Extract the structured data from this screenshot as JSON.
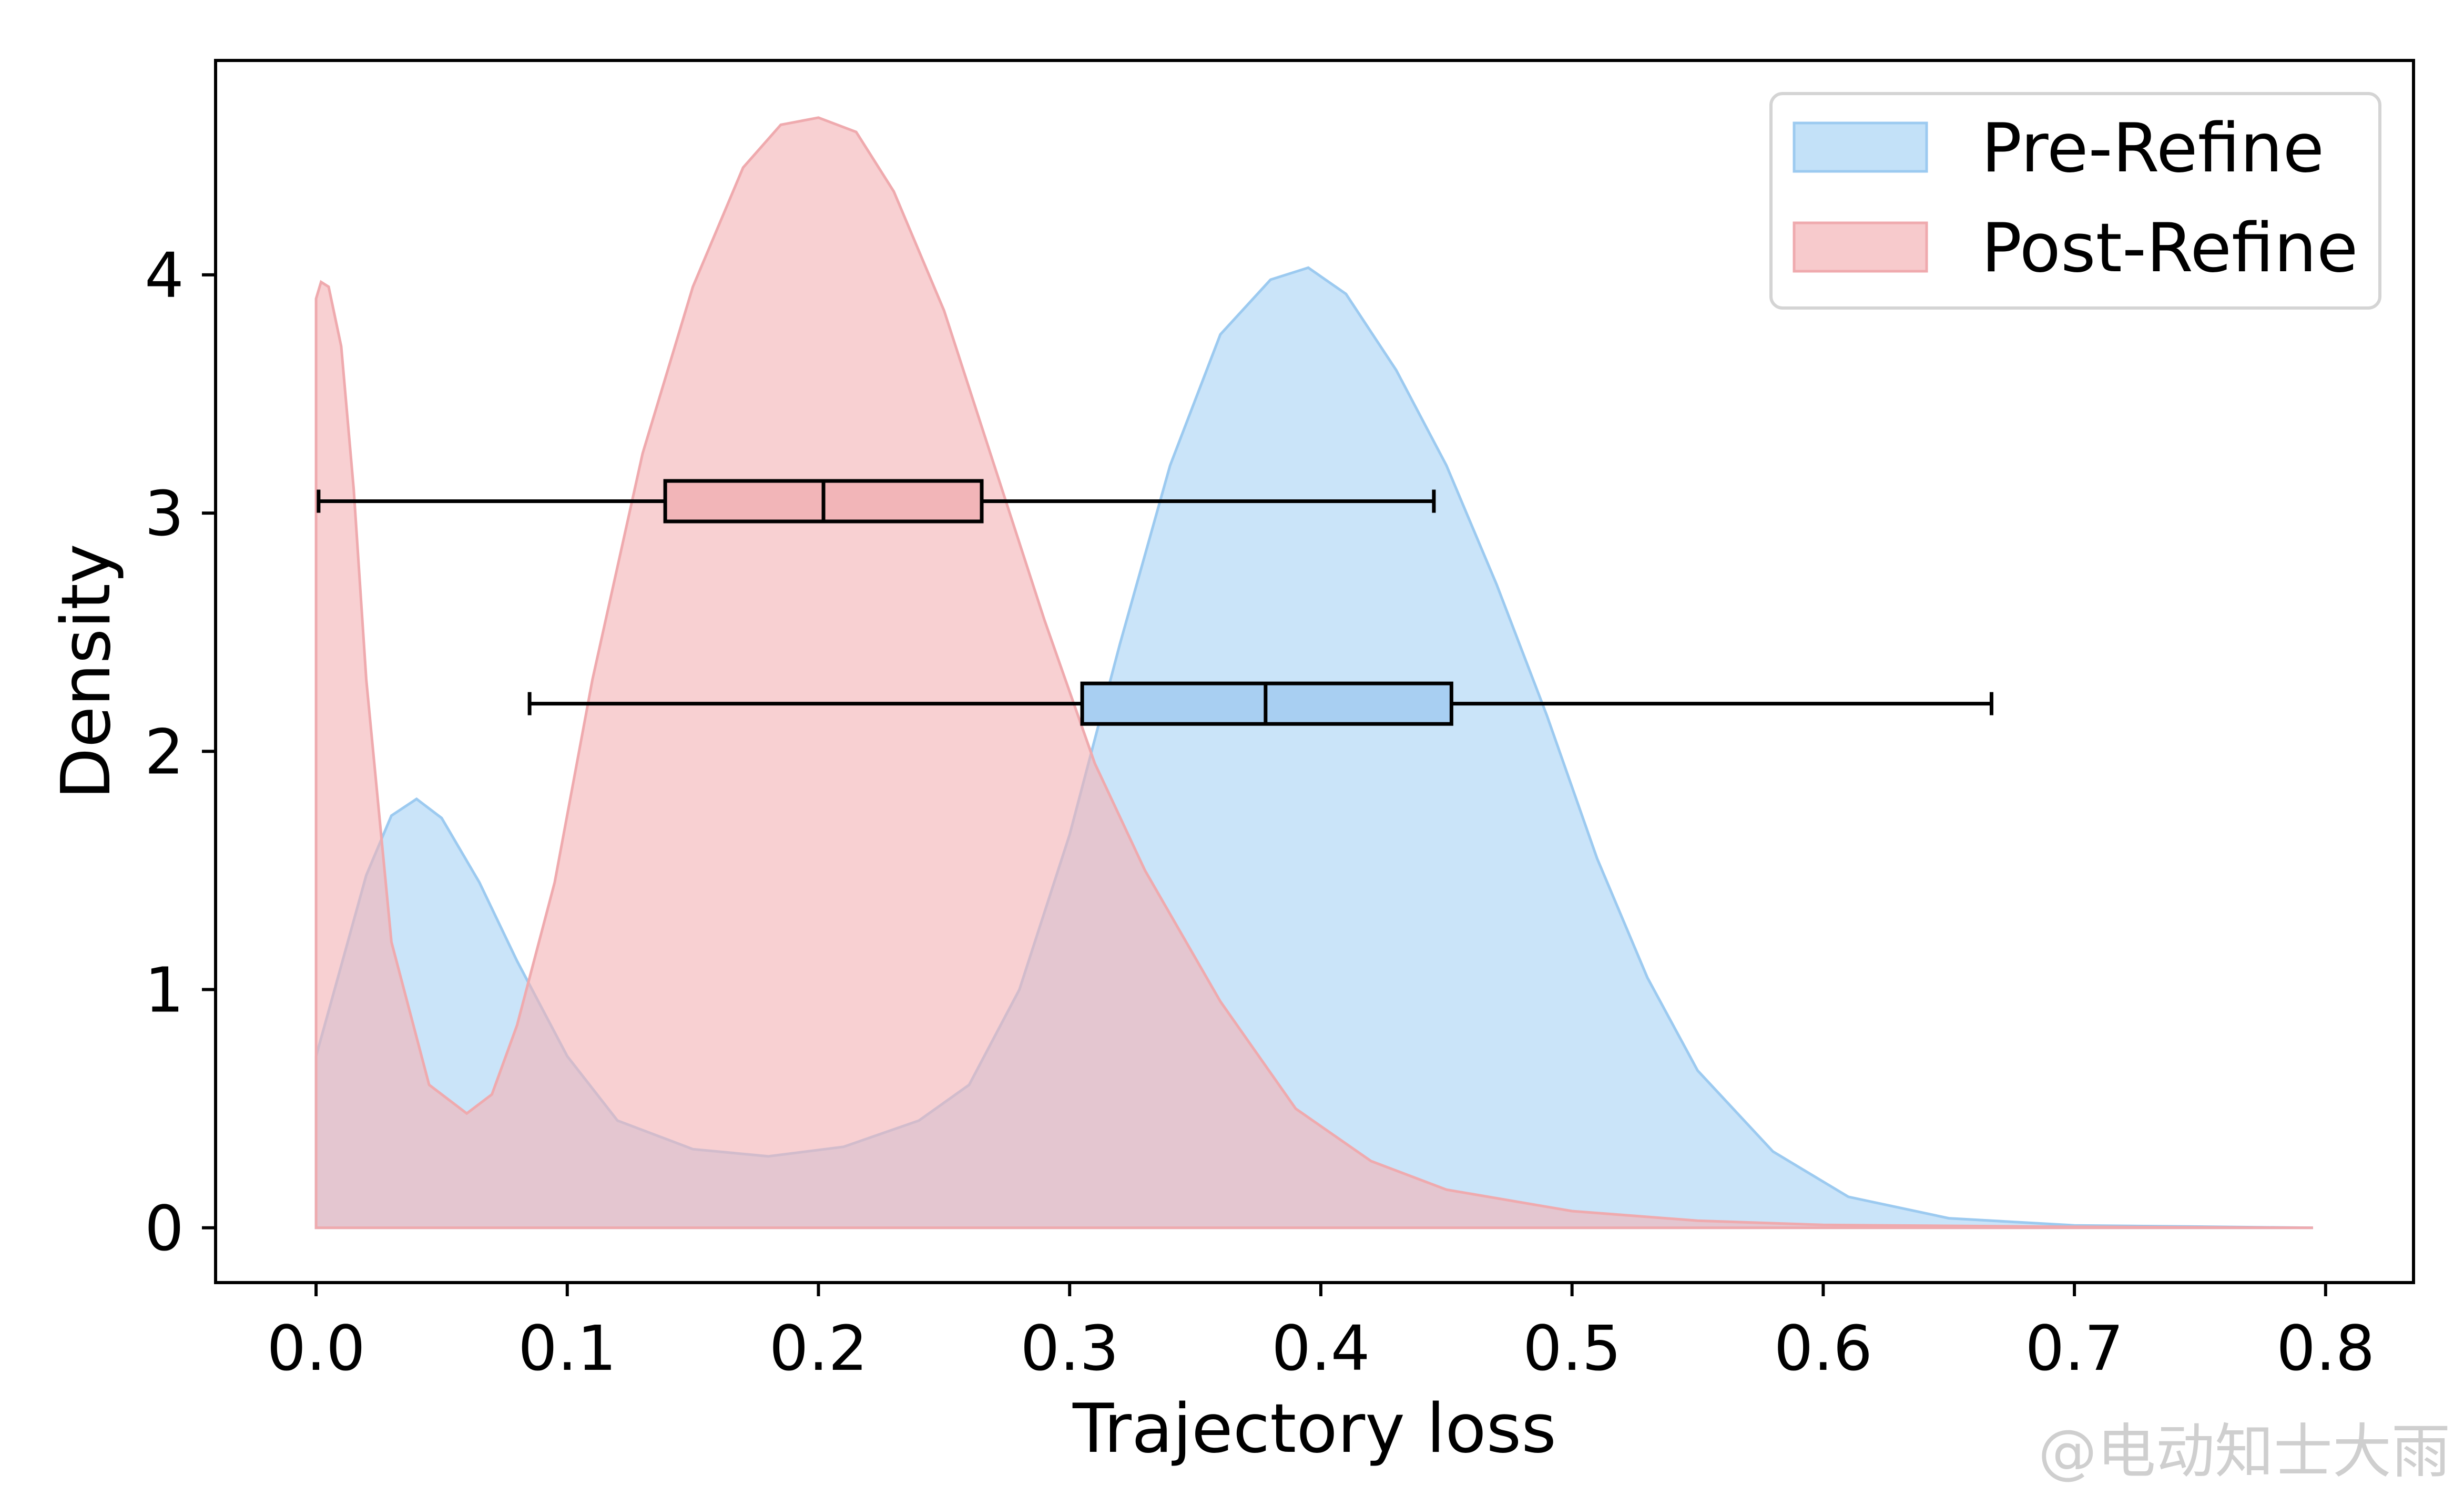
{
  "chart_data": {
    "type": "area",
    "title": "",
    "xlabel": "Trajectory loss",
    "ylabel": "Density",
    "xlim": [
      -0.04,
      0.835
    ],
    "ylim": [
      -0.23,
      4.9
    ],
    "xticks": [
      0.0,
      0.1,
      0.2,
      0.3,
      0.4,
      0.5,
      0.6,
      0.7,
      0.8
    ],
    "xtick_labels": [
      "0.0",
      "0.1",
      "0.2",
      "0.3",
      "0.4",
      "0.5",
      "0.6",
      "0.7",
      "0.8"
    ],
    "yticks": [
      0,
      1,
      2,
      3,
      4
    ],
    "ytick_labels": [
      "0",
      "1",
      "2",
      "3",
      "4"
    ],
    "grid": false,
    "legend_position": "top-right",
    "series": [
      {
        "name": "Pre-Refine",
        "color": "#aad4f5",
        "edge_color": "#9ccaf0",
        "box_color": "#a8cff2",
        "x": [
          0.0,
          0.01,
          0.02,
          0.03,
          0.04,
          0.05,
          0.065,
          0.08,
          0.1,
          0.12,
          0.15,
          0.18,
          0.21,
          0.24,
          0.26,
          0.28,
          0.3,
          0.32,
          0.34,
          0.36,
          0.38,
          0.395,
          0.41,
          0.43,
          0.45,
          0.47,
          0.49,
          0.51,
          0.53,
          0.55,
          0.58,
          0.61,
          0.65,
          0.7,
          0.75,
          0.795
        ],
        "values": [
          0.72,
          1.1,
          1.48,
          1.73,
          1.8,
          1.72,
          1.45,
          1.12,
          0.72,
          0.45,
          0.33,
          0.3,
          0.34,
          0.45,
          0.6,
          1.0,
          1.65,
          2.45,
          3.2,
          3.75,
          3.98,
          4.03,
          3.92,
          3.6,
          3.2,
          2.7,
          2.15,
          1.55,
          1.05,
          0.66,
          0.32,
          0.13,
          0.04,
          0.01,
          0.005,
          0.0
        ],
        "box": {
          "whislo": 0.085,
          "q1": 0.305,
          "median": 0.378,
          "q3": 0.452,
          "whishi": 0.667,
          "y": 2.2,
          "height": 0.17
        }
      },
      {
        "name": "Post-Refine",
        "color": "#f4b3b6",
        "edge_color": "#efaaae",
        "box_color": "#f2b5b8",
        "x": [
          0.0,
          0.002,
          0.005,
          0.01,
          0.015,
          0.02,
          0.03,
          0.045,
          0.06,
          0.07,
          0.08,
          0.095,
          0.11,
          0.13,
          0.15,
          0.17,
          0.185,
          0.2,
          0.215,
          0.23,
          0.25,
          0.27,
          0.29,
          0.31,
          0.33,
          0.36,
          0.39,
          0.42,
          0.45,
          0.5,
          0.55,
          0.6,
          0.7,
          0.795
        ],
        "values": [
          3.9,
          3.97,
          3.95,
          3.7,
          3.1,
          2.3,
          1.2,
          0.6,
          0.48,
          0.56,
          0.85,
          1.45,
          2.3,
          3.25,
          3.95,
          4.45,
          4.63,
          4.66,
          4.6,
          4.35,
          3.85,
          3.2,
          2.55,
          1.95,
          1.5,
          0.95,
          0.5,
          0.28,
          0.16,
          0.07,
          0.03,
          0.012,
          0.004,
          0.0
        ],
        "box": {
          "whislo": 0.001,
          "q1": 0.139,
          "median": 0.202,
          "q3": 0.265,
          "whishi": 0.445,
          "y": 3.05,
          "height": 0.17
        }
      }
    ]
  },
  "watermark": "@电动知士大雨"
}
